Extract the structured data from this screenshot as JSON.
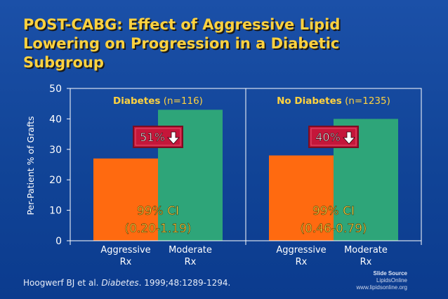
{
  "title_lines": [
    "POST-CABG:  Effect of Aggressive Lipid",
    "Lowering on Progression in a Diabetic",
    "Subgroup"
  ],
  "citation": {
    "pre": "Hoogwerf BJ et al. ",
    "journal": "Diabetes",
    "post": ". 1999;48:1289-1294."
  },
  "slide_source": {
    "line1": "Slide Source",
    "line2": "LipidsOnline",
    "line3": "www.lipidsonline.org"
  },
  "colors": {
    "aggressive": "#ff6a10",
    "moderate": "#2ea579",
    "panel_title": "#ffd23f",
    "badge_fill": "#c5163a"
  },
  "chart_data": {
    "type": "bar",
    "ylabel": "Per-Patient % of Grafts",
    "ylim": [
      0,
      50
    ],
    "yticks": [
      0,
      10,
      20,
      30,
      40,
      50
    ],
    "categories": [
      "Aggressive\nRx",
      "Moderate\nRx"
    ],
    "category_lines": [
      [
        "Aggressive",
        "Rx"
      ],
      [
        "Moderate",
        "Rx"
      ]
    ],
    "panels": [
      {
        "title_bold": "Diabetes",
        "title_n": " (n=116)",
        "values": [
          27,
          43
        ],
        "reduction": "51%",
        "ci_label": "99% CI",
        "ci_range": "(0.20-1.19)"
      },
      {
        "title_bold": "No Diabetes",
        "title_n": " (n=1235)",
        "values": [
          28,
          40
        ],
        "reduction": "40%",
        "ci_label": "99% CI",
        "ci_range": "(0.46-0.79)"
      }
    ]
  }
}
